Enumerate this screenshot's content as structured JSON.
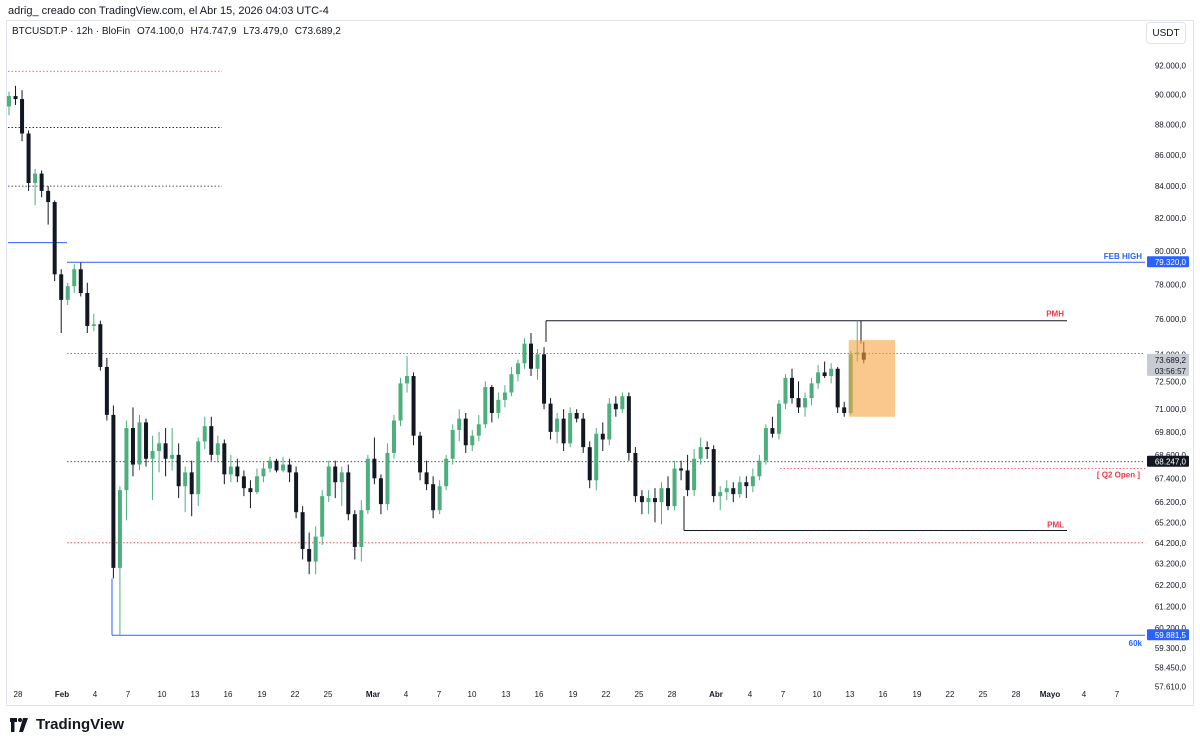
{
  "header": {
    "attribution": "adrig_ creado con TradingView.com, el Abr 15, 2026 04:03 UTC-4"
  },
  "symbol": {
    "name": "BTCUSDT.P · 12h · BloFin",
    "open": "O74.100,0",
    "high": "H74.747,9",
    "low": "L73.479,0",
    "close": "C73.689,2"
  },
  "currency_button": "USDT",
  "brand": "TradingView",
  "colors": {
    "up": "#4caf7d",
    "down": "#131722",
    "blue_line": "#2962ff",
    "red_dotted": "#f23645",
    "black_dotted": "#131722",
    "orange_box": "#f7a440"
  },
  "chart_data": {
    "type": "candlestick",
    "timeframe": "12h",
    "y_axis": {
      "ticks": [
        "92.000,0",
        "90.000,0",
        "88.000,0",
        "86.000,0",
        "84.000,0",
        "82.000,0",
        "80.000,0",
        "78.000,0",
        "76.000,0",
        "74.000,0",
        "72.500,0",
        "71.000,0",
        "69.800,0",
        "68.600,0",
        "67.400,0",
        "66.200,0",
        "65.200,0",
        "64.200,0",
        "63.200,0",
        "62.200,0",
        "61.200,0",
        "60.200,0",
        "59.300,0",
        "58.450,0",
        "57.610,0"
      ],
      "scale": "log",
      "range": [
        57200,
        93500
      ]
    },
    "x_axis": {
      "ticks": [
        "28",
        "Feb",
        "4",
        "7",
        "10",
        "13",
        "16",
        "19",
        "22",
        "25",
        "Mar",
        "4",
        "7",
        "10",
        "13",
        "16",
        "19",
        "22",
        "25",
        "28",
        "Abr",
        "4",
        "7",
        "10",
        "13",
        "16",
        "19",
        "22",
        "25",
        "28",
        "Mayo",
        "4",
        "7"
      ],
      "bold_ticks": [
        "Feb",
        "Mar",
        "Abr",
        "Mayo"
      ]
    },
    "price_labels": [
      {
        "text": "79.320,0",
        "value": 79320,
        "color": "#2962ff"
      },
      {
        "text": "73.689,2",
        "value": 73689,
        "color": "#c8cbd2",
        "subtext": "03:56:57"
      },
      {
        "text": "68.247,0",
        "value": 68247,
        "color": "#131722"
      },
      {
        "text": "59.881,5",
        "value": 59881,
        "color": "#2962ff"
      }
    ],
    "annotations": [
      {
        "text": "FEB HIGH",
        "color": "#2962ff",
        "value": 79320
      },
      {
        "text": "PMH",
        "color": "#f23645",
        "value": 75900
      },
      {
        "text": "[ Q2 Open ]",
        "color": "#f23645",
        "value": 67900
      },
      {
        "text": "PML",
        "color": "#f23645",
        "value": 64800
      },
      {
        "text": "60k",
        "color": "#2962ff",
        "value": 59881
      }
    ],
    "levels": [
      {
        "value": 91600,
        "style": "dotted",
        "color": "#f23645",
        "span": "jan"
      },
      {
        "value": 87800,
        "style": "dotted",
        "color": "#131722",
        "span": "jan"
      },
      {
        "value": 84000,
        "style": "dotted",
        "color": "#131722",
        "span": "jan"
      },
      {
        "value": 80500,
        "style": "solid",
        "color": "#2962ff",
        "span": "jan-short"
      },
      {
        "value": 79320,
        "style": "solid",
        "color": "#2962ff",
        "span": "full"
      },
      {
        "value": 74050,
        "style": "dotted",
        "color": "#f23645",
        "span": "full"
      },
      {
        "value": 75900,
        "style": "solid",
        "color": "#131722",
        "span": "pmh"
      },
      {
        "value": 68247,
        "style": "dotted",
        "color": "#131722",
        "span": "full"
      },
      {
        "value": 67900,
        "style": "dotted",
        "color": "#f23645",
        "span": "q2"
      },
      {
        "value": 64800,
        "style": "solid",
        "color": "#131722",
        "span": "pml"
      },
      {
        "value": 64200,
        "style": "dotted",
        "color": "#f23645",
        "span": "full"
      },
      {
        "value": 59881,
        "style": "solid",
        "color": "#2962ff",
        "span": "sixty"
      }
    ],
    "candles": [
      [
        89200,
        90200,
        88600,
        89900
      ],
      [
        89900,
        90600,
        89300,
        89700
      ],
      [
        89700,
        90300,
        86900,
        87400
      ],
      [
        87400,
        87600,
        83700,
        84200
      ],
      [
        84200,
        85100,
        82800,
        84800
      ],
      [
        84800,
        85000,
        83300,
        83700
      ],
      [
        83700,
        84000,
        81600,
        83000
      ],
      [
        83000,
        83100,
        78200,
        78600
      ],
      [
        78600,
        78900,
        75200,
        77100
      ],
      [
        77100,
        78100,
        76800,
        77900
      ],
      [
        77900,
        79200,
        77500,
        78900
      ],
      [
        78900,
        79300,
        77300,
        77500
      ],
      [
        77500,
        78100,
        75200,
        75600
      ],
      [
        75600,
        76300,
        75300,
        75700
      ],
      [
        75700,
        75900,
        73100,
        73300
      ],
      [
        73300,
        73800,
        70400,
        70700
      ],
      [
        70700,
        71200,
        62500,
        63000
      ],
      [
        63000,
        67000,
        59900,
        66800
      ],
      [
        66800,
        70400,
        65300,
        70000
      ],
      [
        70000,
        71100,
        67500,
        68100
      ],
      [
        68100,
        70700,
        67800,
        70300
      ],
      [
        70300,
        70500,
        68000,
        68400
      ],
      [
        68400,
        69600,
        66300,
        68800
      ],
      [
        68800,
        69800,
        67700,
        69200
      ],
      [
        69200,
        70000,
        67500,
        68400
      ],
      [
        68400,
        70000,
        67800,
        68600
      ],
      [
        68600,
        69200,
        66400,
        67000
      ],
      [
        67000,
        68000,
        65700,
        67700
      ],
      [
        67700,
        68300,
        65500,
        66600
      ],
      [
        66600,
        69500,
        66000,
        69300
      ],
      [
        69300,
        70600,
        68900,
        70100
      ],
      [
        70100,
        70600,
        68300,
        68600
      ],
      [
        68600,
        69600,
        68200,
        69200
      ],
      [
        69200,
        69400,
        67100,
        67600
      ],
      [
        67600,
        68600,
        67200,
        68000
      ],
      [
        68000,
        68400,
        67200,
        67500
      ],
      [
        67500,
        67800,
        66500,
        66900
      ],
      [
        66900,
        67300,
        65900,
        66700
      ],
      [
        66700,
        67900,
        66600,
        67500
      ],
      [
        67500,
        68200,
        67200,
        67900
      ],
      [
        67900,
        68500,
        67700,
        68300
      ],
      [
        68300,
        68400,
        67700,
        67800
      ],
      [
        67800,
        68500,
        67700,
        68100
      ],
      [
        68100,
        68400,
        67200,
        67700
      ],
      [
        67700,
        68000,
        65400,
        65700
      ],
      [
        65700,
        66000,
        63400,
        63900
      ],
      [
        63900,
        64700,
        62700,
        63300
      ],
      [
        63300,
        65000,
        62700,
        64500
      ],
      [
        64500,
        66800,
        64100,
        66500
      ],
      [
        66500,
        68300,
        66200,
        68000
      ],
      [
        68000,
        68300,
        66400,
        67200
      ],
      [
        67200,
        68000,
        66000,
        67700
      ],
      [
        67700,
        68100,
        65300,
        65600
      ],
      [
        65600,
        65800,
        63400,
        64000
      ],
      [
        64000,
        66300,
        63300,
        65800
      ],
      [
        65800,
        68600,
        65600,
        68400
      ],
      [
        68400,
        69500,
        67100,
        67400
      ],
      [
        67400,
        67600,
        65600,
        66100
      ],
      [
        66100,
        69200,
        65800,
        68700
      ],
      [
        68700,
        70700,
        68400,
        70400
      ],
      [
        70400,
        72700,
        70100,
        72400
      ],
      [
        72400,
        73900,
        71900,
        72800
      ],
      [
        72800,
        73000,
        69100,
        69600
      ],
      [
        69600,
        69800,
        67300,
        67700
      ],
      [
        67700,
        68300,
        66800,
        67100
      ],
      [
        67100,
        67500,
        65400,
        65800
      ],
      [
        65800,
        67300,
        65600,
        67000
      ],
      [
        67000,
        68600,
        66800,
        68400
      ],
      [
        68400,
        70200,
        68100,
        69900
      ],
      [
        69900,
        71000,
        69300,
        70500
      ],
      [
        70500,
        70800,
        68700,
        69100
      ],
      [
        69100,
        69900,
        68800,
        69600
      ],
      [
        69600,
        70700,
        69300,
        70200
      ],
      [
        70200,
        72500,
        70000,
        72200
      ],
      [
        72200,
        72300,
        70300,
        70800
      ],
      [
        70800,
        71900,
        70500,
        71500
      ],
      [
        71500,
        72300,
        71100,
        71900
      ],
      [
        71900,
        73300,
        71700,
        72900
      ],
      [
        72900,
        73700,
        72500,
        73500
      ],
      [
        73500,
        74900,
        73200,
        74600
      ],
      [
        74600,
        75200,
        72800,
        73200
      ],
      [
        73200,
        74300,
        72600,
        74000
      ],
      [
        74000,
        74400,
        71000,
        71300
      ],
      [
        71300,
        71600,
        69400,
        69800
      ],
      [
        69800,
        70800,
        69200,
        70500
      ],
      [
        70500,
        71000,
        68800,
        69200
      ],
      [
        69200,
        71100,
        69000,
        70800
      ],
      [
        70800,
        71000,
        70300,
        70500
      ],
      [
        70500,
        70800,
        68700,
        69000
      ],
      [
        69000,
        69300,
        66900,
        67300
      ],
      [
        67300,
        70000,
        66800,
        69700
      ],
      [
        69700,
        70300,
        68800,
        69400
      ],
      [
        69400,
        71600,
        69100,
        71300
      ],
      [
        71300,
        71700,
        70600,
        71000
      ],
      [
        71000,
        71900,
        70800,
        71700
      ],
      [
        71700,
        71900,
        68300,
        68700
      ],
      [
        68700,
        69000,
        66200,
        66500
      ],
      [
        66500,
        66800,
        65600,
        66200
      ],
      [
        66200,
        66800,
        65600,
        66400
      ],
      [
        66400,
        66900,
        65200,
        66200
      ],
      [
        66200,
        67200,
        65100,
        66900
      ],
      [
        66900,
        67500,
        65800,
        66000
      ],
      [
        66000,
        68300,
        65800,
        67900
      ],
      [
        67900,
        68300,
        67300,
        67800
      ],
      [
        67800,
        68600,
        66500,
        66800
      ],
      [
        66800,
        68900,
        66500,
        68400
      ],
      [
        68400,
        69500,
        68100,
        69000
      ],
      [
        69000,
        69300,
        68400,
        68900
      ],
      [
        68900,
        69100,
        66200,
        66500
      ],
      [
        66500,
        67000,
        65800,
        66700
      ],
      [
        66700,
        67300,
        66300,
        66900
      ],
      [
        66900,
        67200,
        66200,
        66600
      ],
      [
        66600,
        67500,
        66400,
        67200
      ],
      [
        67200,
        67500,
        66400,
        67000
      ],
      [
        67000,
        67900,
        66700,
        67500
      ],
      [
        67500,
        68600,
        67300,
        68300
      ],
      [
        68300,
        70200,
        68100,
        70000
      ],
      [
        70000,
        70600,
        69500,
        69700
      ],
      [
        69700,
        71500,
        69400,
        71300
      ],
      [
        71300,
        72900,
        71000,
        72700
      ],
      [
        72700,
        73200,
        71300,
        71600
      ],
      [
        71600,
        72500,
        70800,
        71100
      ],
      [
        71100,
        71900,
        70600,
        71600
      ],
      [
        71600,
        72700,
        71200,
        72400
      ],
      [
        72400,
        73400,
        72100,
        73000
      ],
      [
        73000,
        73600,
        72700,
        72800
      ],
      [
        72800,
        73500,
        72400,
        73200
      ],
      [
        73200,
        73300,
        70800,
        71100
      ],
      [
        71100,
        71400,
        70600,
        70800
      ],
      [
        70800,
        74200,
        70700,
        74000
      ],
      [
        74000,
        75900,
        73600,
        74100
      ],
      [
        74100,
        74700,
        73500,
        73700
      ]
    ]
  }
}
